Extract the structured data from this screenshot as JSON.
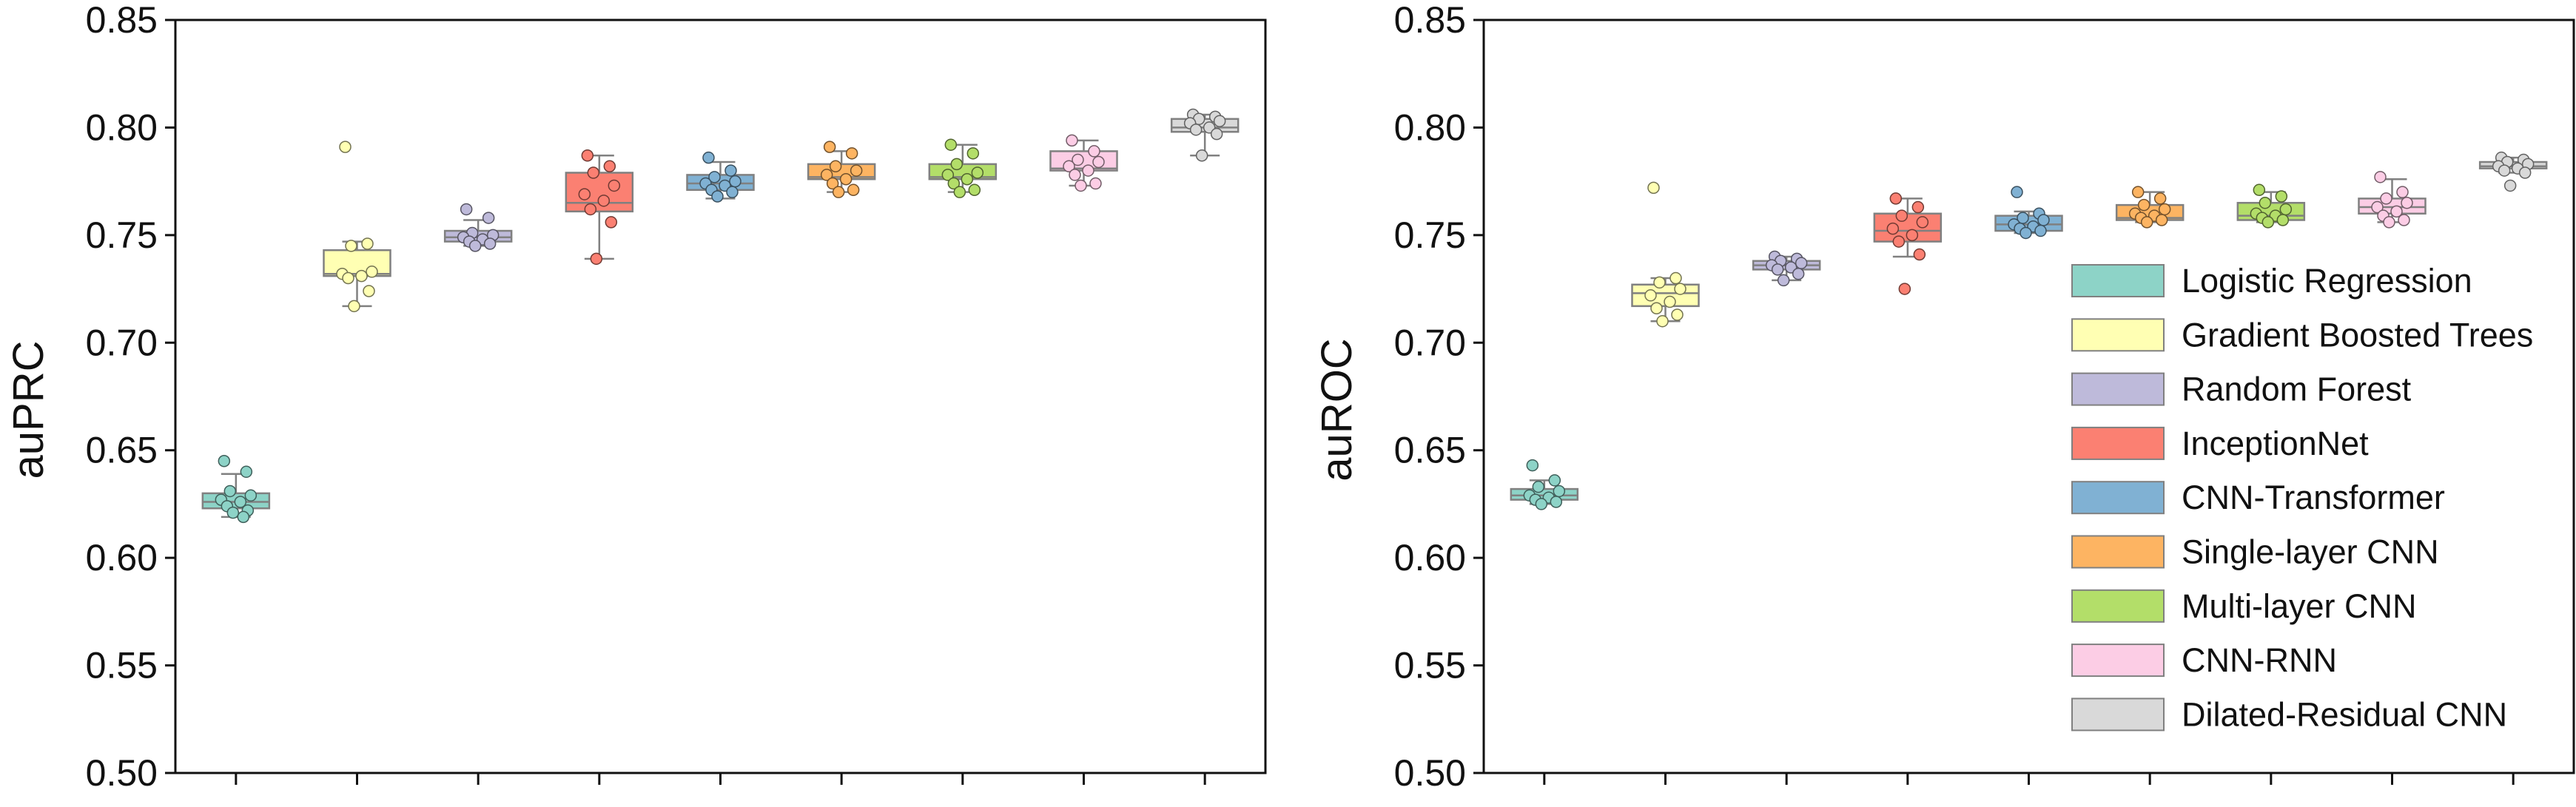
{
  "chart_data": [
    {
      "type": "box",
      "ylabel": "auPRC",
      "ylim": [
        0.5,
        0.85
      ],
      "yticks": [
        "0.50",
        "0.55",
        "0.60",
        "0.65",
        "0.70",
        "0.75",
        "0.80",
        "0.85"
      ],
      "series": [
        {
          "name": "Logistic Regression",
          "color": "#8dd3c7",
          "box": {
            "q1": 0.623,
            "median": 0.626,
            "q3": 0.63,
            "whisker_low": 0.619,
            "whisker_high": 0.639
          },
          "points": [
            0.645,
            0.64,
            0.631,
            0.629,
            0.627,
            0.626,
            0.624,
            0.622,
            0.621,
            0.619
          ]
        },
        {
          "name": "Gradient Boosted Trees",
          "color": "#ffffb3",
          "box": {
            "q1": 0.731,
            "median": 0.732,
            "q3": 0.743,
            "whisker_low": 0.717,
            "whisker_high": 0.747
          },
          "points": [
            0.791,
            0.746,
            0.745,
            0.733,
            0.732,
            0.731,
            0.73,
            0.724,
            0.717
          ]
        },
        {
          "name": "Random Forest",
          "color": "#bebada",
          "box": {
            "q1": 0.747,
            "median": 0.749,
            "q3": 0.752,
            "whisker_low": 0.745,
            "whisker_high": 0.757
          },
          "points": [
            0.762,
            0.758,
            0.751,
            0.75,
            0.749,
            0.748,
            0.747,
            0.746,
            0.745
          ]
        },
        {
          "name": "InceptionNet",
          "color": "#fb8072",
          "box": {
            "q1": 0.761,
            "median": 0.765,
            "q3": 0.779,
            "whisker_low": 0.739,
            "whisker_high": 0.787
          },
          "points": [
            0.787,
            0.782,
            0.779,
            0.773,
            0.769,
            0.766,
            0.762,
            0.756,
            0.739
          ]
        },
        {
          "name": "CNN-Transformer",
          "color": "#80b1d3",
          "box": {
            "q1": 0.771,
            "median": 0.774,
            "q3": 0.778,
            "whisker_low": 0.767,
            "whisker_high": 0.784
          },
          "points": [
            0.786,
            0.78,
            0.777,
            0.775,
            0.774,
            0.773,
            0.771,
            0.77,
            0.768
          ]
        },
        {
          "name": "Single-layer CNN",
          "color": "#fdb462",
          "box": {
            "q1": 0.776,
            "median": 0.777,
            "q3": 0.783,
            "whisker_low": 0.77,
            "whisker_high": 0.789
          },
          "points": [
            0.791,
            0.788,
            0.782,
            0.78,
            0.778,
            0.776,
            0.774,
            0.771,
            0.77
          ]
        },
        {
          "name": "Multi-layer CNN",
          "color": "#b3de69",
          "box": {
            "q1": 0.776,
            "median": 0.777,
            "q3": 0.783,
            "whisker_low": 0.77,
            "whisker_high": 0.792
          },
          "points": [
            0.792,
            0.788,
            0.783,
            0.779,
            0.778,
            0.776,
            0.774,
            0.771,
            0.77
          ]
        },
        {
          "name": "CNN-RNN",
          "color": "#fccde5",
          "box": {
            "q1": 0.78,
            "median": 0.781,
            "q3": 0.789,
            "whisker_low": 0.773,
            "whisker_high": 0.794
          },
          "points": [
            0.794,
            0.789,
            0.785,
            0.784,
            0.782,
            0.78,
            0.778,
            0.774,
            0.773
          ]
        },
        {
          "name": "Dilated-Residual CNN",
          "color": "#d9d9d9",
          "box": {
            "q1": 0.798,
            "median": 0.8,
            "q3": 0.804,
            "whisker_low": 0.787,
            "whisker_high": 0.806
          },
          "points": [
            0.806,
            0.805,
            0.804,
            0.803,
            0.802,
            0.8,
            0.799,
            0.797,
            0.787
          ]
        }
      ]
    },
    {
      "type": "box",
      "ylabel": "auROC",
      "ylim": [
        0.5,
        0.85
      ],
      "yticks": [
        "0.50",
        "0.55",
        "0.60",
        "0.65",
        "0.70",
        "0.75",
        "0.80",
        "0.85"
      ],
      "series": [
        {
          "name": "Logistic Regression",
          "color": "#8dd3c7",
          "box": {
            "q1": 0.627,
            "median": 0.629,
            "q3": 0.632,
            "whisker_low": 0.625,
            "whisker_high": 0.636
          },
          "points": [
            0.643,
            0.636,
            0.633,
            0.631,
            0.629,
            0.628,
            0.627,
            0.626,
            0.625
          ]
        },
        {
          "name": "Gradient Boosted Trees",
          "color": "#ffffb3",
          "box": {
            "q1": 0.717,
            "median": 0.723,
            "q3": 0.727,
            "whisker_low": 0.71,
            "whisker_high": 0.73
          },
          "points": [
            0.772,
            0.73,
            0.728,
            0.725,
            0.722,
            0.719,
            0.716,
            0.713,
            0.71
          ]
        },
        {
          "name": "Random Forest",
          "color": "#bebada",
          "box": {
            "q1": 0.734,
            "median": 0.736,
            "q3": 0.738,
            "whisker_low": 0.729,
            "whisker_high": 0.74
          },
          "points": [
            0.74,
            0.739,
            0.738,
            0.737,
            0.736,
            0.735,
            0.734,
            0.732,
            0.729
          ]
        },
        {
          "name": "InceptionNet",
          "color": "#fb8072",
          "box": {
            "q1": 0.747,
            "median": 0.752,
            "q3": 0.76,
            "whisker_low": 0.74,
            "whisker_high": 0.767
          },
          "points": [
            0.767,
            0.763,
            0.759,
            0.756,
            0.753,
            0.75,
            0.747,
            0.741,
            0.725
          ]
        },
        {
          "name": "CNN-Transformer",
          "color": "#80b1d3",
          "box": {
            "q1": 0.752,
            "median": 0.755,
            "q3": 0.759,
            "whisker_low": 0.751,
            "whisker_high": 0.761
          },
          "points": [
            0.77,
            0.76,
            0.758,
            0.757,
            0.755,
            0.754,
            0.753,
            0.752,
            0.751
          ]
        },
        {
          "name": "Single-layer CNN",
          "color": "#fdb462",
          "box": {
            "q1": 0.757,
            "median": 0.758,
            "q3": 0.764,
            "whisker_low": 0.756,
            "whisker_high": 0.77
          },
          "points": [
            0.77,
            0.767,
            0.764,
            0.762,
            0.76,
            0.759,
            0.758,
            0.757,
            0.756
          ]
        },
        {
          "name": "Multi-layer CNN",
          "color": "#b3de69",
          "box": {
            "q1": 0.757,
            "median": 0.759,
            "q3": 0.765,
            "whisker_low": 0.756,
            "whisker_high": 0.77
          },
          "points": [
            0.771,
            0.768,
            0.765,
            0.762,
            0.76,
            0.759,
            0.758,
            0.757,
            0.756
          ]
        },
        {
          "name": "CNN-RNN",
          "color": "#fccde5",
          "box": {
            "q1": 0.76,
            "median": 0.763,
            "q3": 0.767,
            "whisker_low": 0.756,
            "whisker_high": 0.776
          },
          "points": [
            0.777,
            0.77,
            0.767,
            0.765,
            0.763,
            0.761,
            0.759,
            0.757,
            0.756
          ]
        },
        {
          "name": "Dilated-Residual CNN",
          "color": "#d9d9d9",
          "box": {
            "q1": 0.781,
            "median": 0.782,
            "q3": 0.784,
            "whisker_low": 0.779,
            "whisker_high": 0.786
          },
          "points": [
            0.786,
            0.785,
            0.784,
            0.783,
            0.782,
            0.781,
            0.78,
            0.779,
            0.773
          ]
        }
      ],
      "legend": {
        "placement": "right",
        "entries": [
          "Logistic Regression",
          "Gradient Boosted Trees",
          "Random Forest",
          "InceptionNet",
          "CNN-Transformer",
          "Single-layer CNN",
          "Multi-layer CNN",
          "CNN-RNN",
          "Dilated-Residual CNN"
        ]
      }
    }
  ]
}
